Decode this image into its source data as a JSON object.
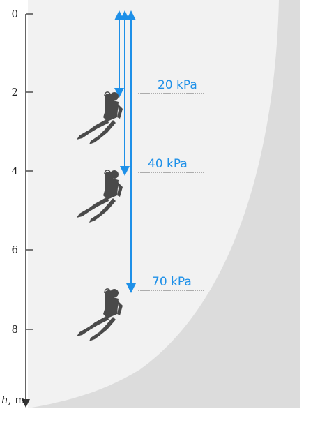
{
  "axis": {
    "tick_labels": [
      "0",
      "2",
      "4",
      "6",
      "8"
    ],
    "label_var": "h",
    "label_unit": ", m"
  },
  "depth_markers": [
    {
      "label": "20 kPa"
    },
    {
      "label": "40 kPa"
    },
    {
      "label": "70 kPa"
    }
  ],
  "colors": {
    "arrow": "#1e90e8",
    "label": "#1e90e8",
    "water": "#dcdcdc",
    "shore": "#f2f2f2",
    "diver": "#4a4a4a",
    "axis": "#333333"
  },
  "icons": [
    "scuba-diver-icon",
    "scuba-diver-icon",
    "scuba-diver-icon"
  ]
}
